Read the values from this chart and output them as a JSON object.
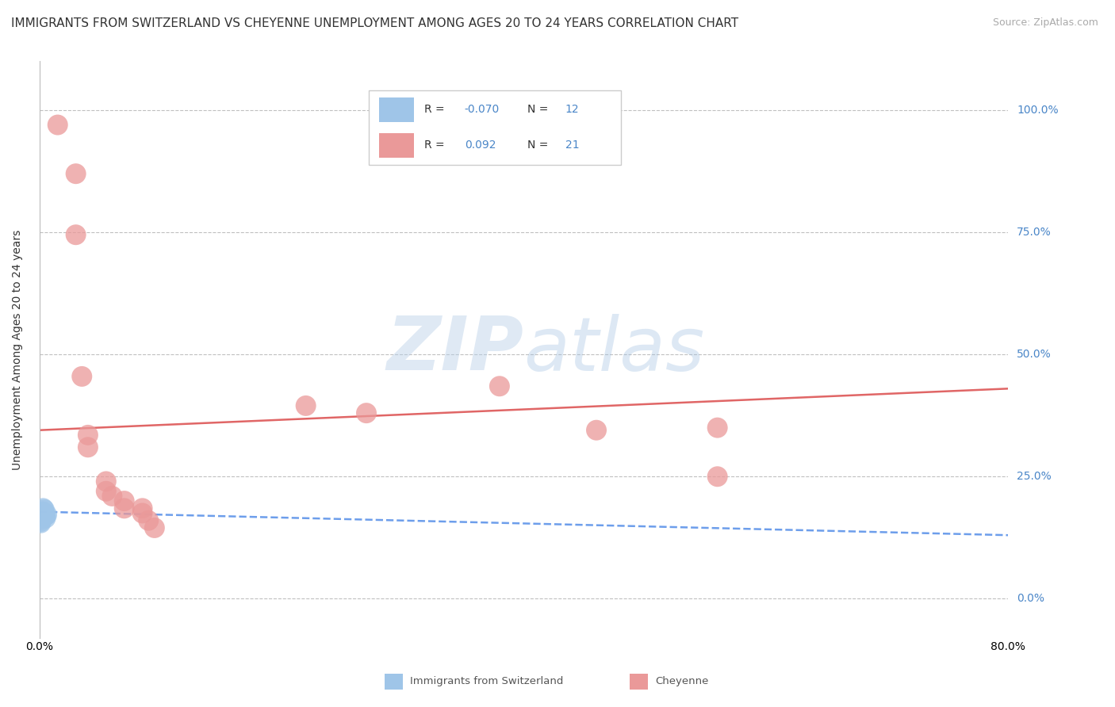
{
  "title": "IMMIGRANTS FROM SWITZERLAND VS CHEYENNE UNEMPLOYMENT AMONG AGES 20 TO 24 YEARS CORRELATION CHART",
  "source": "Source: ZipAtlas.com",
  "ylabel": "Unemployment Among Ages 20 to 24 years",
  "xlim": [
    0.0,
    0.8
  ],
  "ylim": [
    -0.08,
    1.1
  ],
  "blue_R": -0.07,
  "blue_N": 12,
  "pink_R": 0.092,
  "pink_N": 21,
  "blue_color": "#9fc5e8",
  "pink_color": "#ea9999",
  "blue_line_color": "#6d9eeb",
  "pink_line_color": "#e06666",
  "background_color": "#ffffff",
  "grid_color": "#c0c0c0",
  "watermark": "ZIPatlas",
  "blue_dots": [
    [
      0.002,
      0.175
    ],
    [
      0.003,
      0.185
    ],
    [
      0.003,
      0.178
    ],
    [
      0.004,
      0.182
    ],
    [
      0.004,
      0.175
    ],
    [
      0.005,
      0.17
    ],
    [
      0.005,
      0.165
    ],
    [
      0.006,
      0.172
    ],
    [
      0.002,
      0.168
    ],
    [
      0.001,
      0.162
    ],
    [
      0.001,
      0.158
    ],
    [
      0.001,
      0.155
    ]
  ],
  "pink_dots": [
    [
      0.015,
      0.97
    ],
    [
      0.03,
      0.87
    ],
    [
      0.03,
      0.745
    ],
    [
      0.035,
      0.455
    ],
    [
      0.04,
      0.335
    ],
    [
      0.04,
      0.31
    ],
    [
      0.055,
      0.24
    ],
    [
      0.055,
      0.22
    ],
    [
      0.06,
      0.21
    ],
    [
      0.07,
      0.2
    ],
    [
      0.07,
      0.185
    ],
    [
      0.085,
      0.185
    ],
    [
      0.085,
      0.175
    ],
    [
      0.09,
      0.16
    ],
    [
      0.095,
      0.145
    ],
    [
      0.22,
      0.395
    ],
    [
      0.27,
      0.38
    ],
    [
      0.38,
      0.435
    ],
    [
      0.46,
      0.345
    ],
    [
      0.56,
      0.35
    ],
    [
      0.56,
      0.25
    ]
  ],
  "blue_trend": [
    0.0,
    0.8,
    0.178,
    0.13
  ],
  "pink_trend": [
    0.0,
    0.8,
    0.345,
    0.43
  ],
  "title_fontsize": 11,
  "source_fontsize": 9,
  "label_fontsize": 10,
  "tick_fontsize": 10
}
